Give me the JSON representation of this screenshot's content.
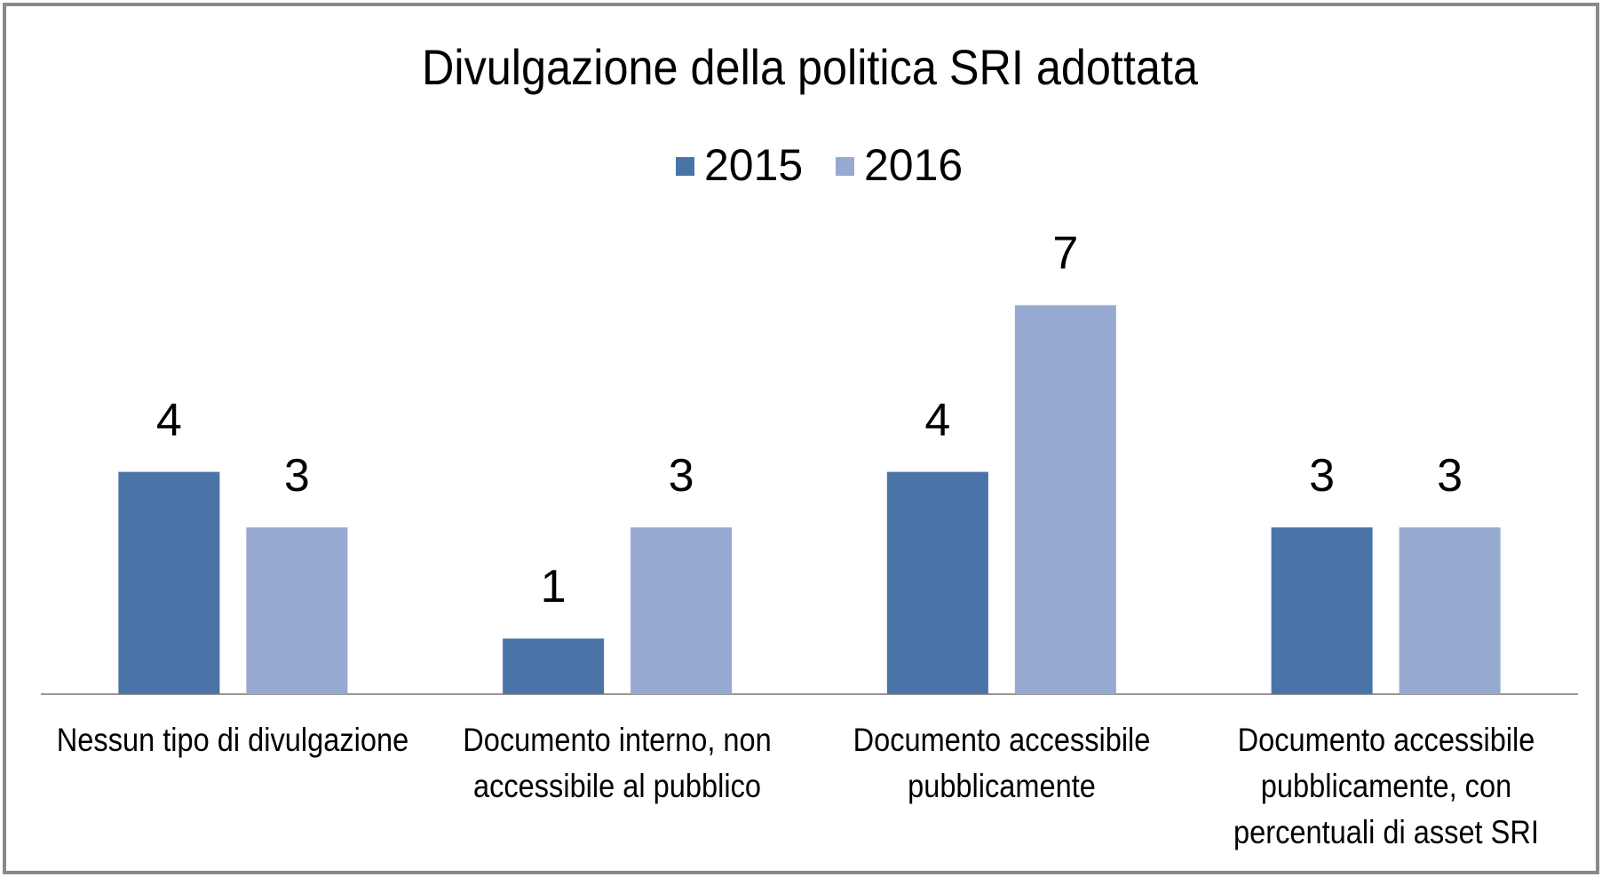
{
  "chart_data": {
    "type": "bar",
    "title": "Divulgazione della politica SRI adottata",
    "categories": [
      "Nessun tipo di divulgazione",
      "Documento interno, non accessibile al pubblico",
      "Documento accessibile pubblicamente",
      "Documento accessibile pubblicamente, con percentuali di asset SRI"
    ],
    "series": [
      {
        "name": "2015",
        "color": "#4a74a8",
        "values": [
          4,
          1,
          4,
          3
        ]
      },
      {
        "name": "2016",
        "color": "#95a9d1",
        "values": [
          3,
          3,
          7,
          3
        ]
      }
    ],
    "legend": "top"
  }
}
